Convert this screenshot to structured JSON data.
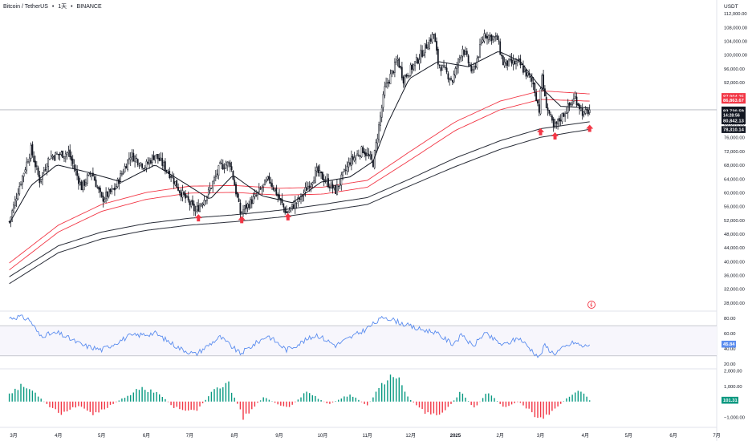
{
  "header": {
    "symbol": "Bitcoin / TetherUS",
    "sep1": "•",
    "interval": "1天",
    "sep2": "•",
    "exchange": "BINANCE",
    "currency": "USDT"
  },
  "colors": {
    "up": "#089981",
    "down": "#f23645",
    "candle": "#131722",
    "ma": "#131722",
    "envelope_red": "#f23645",
    "envelope_dark": "#2a2e39",
    "rsi": "#5b8def",
    "arrow": "#f23645"
  },
  "chart_data": [
    {
      "type": "candlestick",
      "title": "",
      "x_months": [
        "3月",
        "4月",
        "5月",
        "6月",
        "7月",
        "8月",
        "9月",
        "10月",
        "11月",
        "12月",
        "2025",
        "2月",
        "3月",
        "4月",
        "5月",
        "6月",
        "7月"
      ],
      "y_ticks": [
        "112,000.00",
        "108,000.00",
        "104,000.00",
        "100,000.00",
        "96,000.00",
        "92,000.00",
        "88,000.00",
        "84,000.00",
        "80,000.00",
        "76,000.00",
        "72,000.00",
        "68,000.00",
        "64,000.00",
        "60,000.00",
        "56,000.00",
        "52,000.00",
        "48,000.00",
        "44,000.00",
        "40,000.00",
        "36,000.00",
        "32,000.00",
        "28,000.00"
      ],
      "ylim": [
        26000,
        114000
      ],
      "close_path": [
        [
          "2024-02-27",
          51500
        ],
        [
          "2024-03-05",
          62000
        ],
        [
          "2024-03-13",
          72500
        ],
        [
          "2024-03-19",
          63500
        ],
        [
          "2024-03-26",
          70500
        ],
        [
          "2024-04-08",
          71500
        ],
        [
          "2024-04-17",
          61500
        ],
        [
          "2024-04-24",
          66000
        ],
        [
          "2024-05-01",
          58000
        ],
        [
          "2024-05-10",
          61000
        ],
        [
          "2024-05-21",
          71000
        ],
        [
          "2024-05-31",
          67500
        ],
        [
          "2024-06-07",
          71000
        ],
        [
          "2024-06-18",
          65000
        ],
        [
          "2024-06-24",
          60500
        ],
        [
          "2024-07-05",
          54500
        ],
        [
          "2024-07-14",
          60000
        ],
        [
          "2024-07-22",
          67500
        ],
        [
          "2024-07-29",
          68500
        ],
        [
          "2024-08-05",
          54000
        ],
        [
          "2024-08-15",
          58500
        ],
        [
          "2024-08-25",
          64000
        ],
        [
          "2024-09-06",
          54000
        ],
        [
          "2024-09-16",
          58500
        ],
        [
          "2024-09-27",
          66000
        ],
        [
          "2024-10-10",
          60500
        ],
        [
          "2024-10-20",
          69000
        ],
        [
          "2024-10-29",
          72500
        ],
        [
          "2024-11-05",
          68500
        ],
        [
          "2024-11-13",
          90000
        ],
        [
          "2024-11-22",
          98500
        ],
        [
          "2024-11-26",
          93000
        ],
        [
          "2024-12-05",
          98000
        ],
        [
          "2024-12-17",
          106000
        ],
        [
          "2024-12-20",
          97500
        ],
        [
          "2024-12-30",
          92500
        ],
        [
          "2025-01-06",
          102000
        ],
        [
          "2025-01-13",
          94500
        ],
        [
          "2025-01-21",
          106000
        ],
        [
          "2025-01-30",
          104500
        ],
        [
          "2025-02-03",
          97500
        ],
        [
          "2025-02-14",
          97500
        ],
        [
          "2025-02-24",
          91500
        ],
        [
          "2025-02-28",
          84000
        ],
        [
          "2025-03-02",
          94000
        ],
        [
          "2025-03-04",
          87000
        ],
        [
          "2025-03-10",
          78500
        ],
        [
          "2025-03-18",
          83500
        ],
        [
          "2025-03-25",
          87500
        ],
        [
          "2025-03-31",
          82500
        ],
        [
          "2025-04-04",
          83987
        ]
      ],
      "moving_average_path": [
        [
          "2024-02-27",
          51000
        ],
        [
          "2024-03-13",
          62000
        ],
        [
          "2024-03-31",
          68000
        ],
        [
          "2024-04-20",
          66000
        ],
        [
          "2024-05-15",
          63000
        ],
        [
          "2024-06-07",
          68000
        ],
        [
          "2024-06-30",
          62000
        ],
        [
          "2024-07-15",
          58000
        ],
        [
          "2024-07-31",
          65000
        ],
        [
          "2024-08-20",
          59000
        ],
        [
          "2024-09-10",
          57000
        ],
        [
          "2024-09-30",
          63000
        ],
        [
          "2024-10-20",
          64500
        ],
        [
          "2024-11-05",
          69000
        ],
        [
          "2024-11-15",
          80000
        ],
        [
          "2024-11-30",
          93000
        ],
        [
          "2024-12-20",
          98000
        ],
        [
          "2025-01-10",
          96500
        ],
        [
          "2025-01-31",
          101000
        ],
        [
          "2025-02-15",
          98000
        ],
        [
          "2025-02-28",
          91000
        ],
        [
          "2025-03-15",
          85000
        ],
        [
          "2025-04-04",
          84500
        ]
      ],
      "red_band_upper": [
        [
          "2024-02-27",
          39500
        ],
        [
          "2024-04-01",
          50500
        ],
        [
          "2024-05-01",
          56500
        ],
        [
          "2024-06-01",
          60000
        ],
        [
          "2024-07-01",
          61800
        ],
        [
          "2024-08-01",
          62000
        ],
        [
          "2024-09-01",
          61200
        ],
        [
          "2024-10-01",
          61500
        ],
        [
          "2024-11-01",
          63500
        ],
        [
          "2024-12-01",
          72000
        ],
        [
          "2025-01-01",
          80500
        ],
        [
          "2025-02-01",
          86500
        ],
        [
          "2025-03-01",
          89500
        ],
        [
          "2025-04-04",
          88600
        ]
      ],
      "red_band_lower": [
        [
          "2024-02-27",
          37500
        ],
        [
          "2024-04-01",
          48500
        ],
        [
          "2024-05-01",
          54500
        ],
        [
          "2024-06-01",
          58000
        ],
        [
          "2024-07-01",
          59800
        ],
        [
          "2024-08-01",
          60000
        ],
        [
          "2024-09-01",
          59200
        ],
        [
          "2024-10-01",
          59500
        ],
        [
          "2024-11-01",
          61500
        ],
        [
          "2024-12-01",
          69500
        ],
        [
          "2025-01-01",
          78000
        ],
        [
          "2025-02-01",
          84000
        ],
        [
          "2025-03-01",
          87000
        ],
        [
          "2025-04-04",
          86500
        ]
      ],
      "dark_band_upper": [
        [
          "2024-02-27",
          35500
        ],
        [
          "2024-04-01",
          44500
        ],
        [
          "2024-05-01",
          48500
        ],
        [
          "2024-06-01",
          51000
        ],
        [
          "2024-07-01",
          52500
        ],
        [
          "2024-08-01",
          53500
        ],
        [
          "2024-09-01",
          54800
        ],
        [
          "2024-10-01",
          56500
        ],
        [
          "2024-11-01",
          58500
        ],
        [
          "2024-12-01",
          64000
        ],
        [
          "2025-01-01",
          70000
        ],
        [
          "2025-02-01",
          75000
        ],
        [
          "2025-03-01",
          78500
        ],
        [
          "2025-04-04",
          80500
        ]
      ],
      "dark_band_lower": [
        [
          "2024-02-27",
          33500
        ],
        [
          "2024-04-01",
          42500
        ],
        [
          "2024-05-01",
          46500
        ],
        [
          "2024-06-01",
          49000
        ],
        [
          "2024-07-01",
          50500
        ],
        [
          "2024-08-01",
          51500
        ],
        [
          "2024-09-01",
          52800
        ],
        [
          "2024-10-01",
          54500
        ],
        [
          "2024-11-01",
          56500
        ],
        [
          "2024-12-01",
          62000
        ],
        [
          "2025-01-01",
          67500
        ],
        [
          "2025-02-01",
          72500
        ],
        [
          "2025-03-01",
          76000
        ],
        [
          "2025-04-04",
          78300
        ]
      ],
      "signal_arrows": [
        [
          "2024-07-07",
          52500
        ],
        [
          "2024-08-06",
          52000
        ],
        [
          "2024-09-07",
          52800
        ],
        [
          "2025-03-01",
          77500
        ],
        [
          "2025-03-11",
          76300
        ],
        [
          "2025-04-04",
          78500
        ]
      ],
      "price_labels": [
        {
          "value": 87904.25,
          "text": "87,904.25",
          "style": "red"
        },
        {
          "value": 86863.67,
          "text": "86,863.67",
          "style": "red"
        },
        {
          "value": 83987.34,
          "text": "83,987.34",
          "style": "dark"
        },
        {
          "value": 83720.59,
          "text": "83,720.59",
          "style": "dark"
        },
        {
          "value": 82520.0,
          "text": "14:28:56",
          "style": "dark-small"
        },
        {
          "value": 80842.13,
          "text": "80,842.13",
          "style": "dark"
        },
        {
          "value": 78310.14,
          "text": "78,310.14",
          "style": "dark"
        }
      ],
      "current_price": 83987.34
    },
    {
      "type": "line",
      "name": "rsi",
      "y_ticks": [
        "80.00",
        "60.00",
        "40.00",
        "20.00"
      ],
      "ylim": [
        15,
        85
      ],
      "bands": [
        70,
        30
      ],
      "series": [
        [
          "2024-02-27",
          80
        ],
        [
          "2024-03-05",
          82
        ],
        [
          "2024-03-12",
          78
        ],
        [
          "2024-03-19",
          57
        ],
        [
          "2024-04-01",
          60
        ],
        [
          "2024-04-18",
          44
        ],
        [
          "2024-05-01",
          38
        ],
        [
          "2024-05-20",
          56
        ],
        [
          "2024-06-07",
          60
        ],
        [
          "2024-06-24",
          40
        ],
        [
          "2024-07-05",
          32
        ],
        [
          "2024-07-22",
          55
        ],
        [
          "2024-08-05",
          33
        ],
        [
          "2024-08-24",
          57
        ],
        [
          "2024-09-06",
          38
        ],
        [
          "2024-09-27",
          58
        ],
        [
          "2024-10-10",
          44
        ],
        [
          "2024-10-29",
          63
        ],
        [
          "2024-11-13",
          82
        ],
        [
          "2024-11-25",
          73
        ],
        [
          "2024-12-05",
          66
        ],
        [
          "2024-12-17",
          62
        ],
        [
          "2024-12-30",
          46
        ],
        [
          "2025-01-06",
          58
        ],
        [
          "2025-01-13",
          42
        ],
        [
          "2025-01-21",
          60
        ],
        [
          "2025-02-03",
          44
        ],
        [
          "2025-02-14",
          54
        ],
        [
          "2025-02-28",
          28
        ],
        [
          "2025-03-04",
          44
        ],
        [
          "2025-03-10",
          33
        ],
        [
          "2025-03-24",
          48
        ],
        [
          "2025-03-31",
          42
        ],
        [
          "2025-04-04",
          45.84
        ]
      ],
      "label": "45.84"
    },
    {
      "type": "bar",
      "name": "oscillator",
      "y_ticks": [
        "2,000.00",
        "1,000.00",
        "0.00",
        "−1,000.00"
      ],
      "ylim": [
        -1400,
        2000
      ],
      "series": [
        [
          "2024-02-27",
          600
        ],
        [
          "2024-03-07",
          1100
        ],
        [
          "2024-03-15",
          700
        ],
        [
          "2024-03-25",
          -300
        ],
        [
          "2024-04-03",
          -900
        ],
        [
          "2024-04-14",
          -300
        ],
        [
          "2024-04-25",
          -800
        ],
        [
          "2024-05-05",
          -400
        ],
        [
          "2024-05-15",
          200
        ],
        [
          "2024-05-28",
          900
        ],
        [
          "2024-06-08",
          700
        ],
        [
          "2024-06-20",
          -400
        ],
        [
          "2024-07-05",
          -700
        ],
        [
          "2024-07-18",
          800
        ],
        [
          "2024-07-28",
          1200
        ],
        [
          "2024-08-07",
          -1100
        ],
        [
          "2024-08-21",
          300
        ],
        [
          "2024-09-07",
          -500
        ],
        [
          "2024-09-20",
          700
        ],
        [
          "2024-10-05",
          -200
        ],
        [
          "2024-10-20",
          500
        ],
        [
          "2024-11-01",
          -300
        ],
        [
          "2024-11-12",
          1400
        ],
        [
          "2024-11-22",
          1900
        ],
        [
          "2024-11-29",
          300
        ],
        [
          "2024-12-10",
          -700
        ],
        [
          "2024-12-22",
          -1000
        ],
        [
          "2025-01-05",
          700
        ],
        [
          "2025-01-14",
          -500
        ],
        [
          "2025-01-24",
          700
        ],
        [
          "2025-02-03",
          -400
        ],
        [
          "2025-02-14",
          0
        ],
        [
          "2025-02-28",
          -1200
        ],
        [
          "2025-03-10",
          -600
        ],
        [
          "2025-03-20",
          300
        ],
        [
          "2025-03-28",
          800
        ],
        [
          "2025-04-04",
          101.31
        ]
      ],
      "label": "101.31"
    }
  ]
}
